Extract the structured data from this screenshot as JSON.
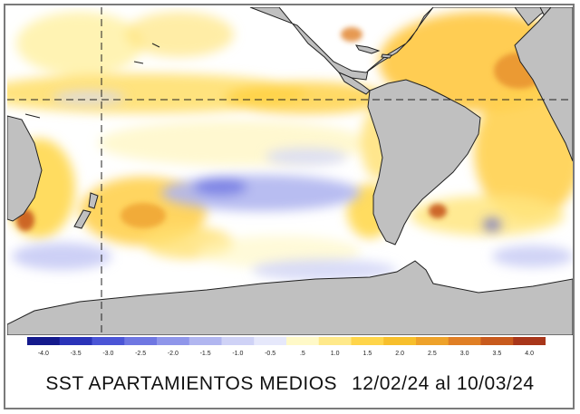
{
  "caption": {
    "title": "SST APARTAMIENTOS MEDIOS",
    "period": "12/02/24 al 10/03/24"
  },
  "colorbar": {
    "ticks": [
      "-4.0",
      "-3.5",
      "-3.0",
      "-2.5",
      "-2.0",
      "-1.5",
      "-1.0",
      "-0.5",
      ".5",
      "1.0",
      "1.5",
      "2.0",
      "2.5",
      "3.0",
      "3.5",
      "4.0"
    ],
    "colors": [
      "#141a8c",
      "#2a33b8",
      "#4b55d6",
      "#6f77e2",
      "#8f96ea",
      "#b1b6f0",
      "#cfd2f6",
      "#e6e8fb",
      "#fff9c8",
      "#ffe98a",
      "#ffd54a",
      "#f7bf2c",
      "#eea22a",
      "#e07f25",
      "#c85a1d",
      "#a8361a"
    ]
  },
  "map": {
    "land_color": "#c0c0c0",
    "coast_color": "#202020",
    "gridline_color": "#202020"
  }
}
